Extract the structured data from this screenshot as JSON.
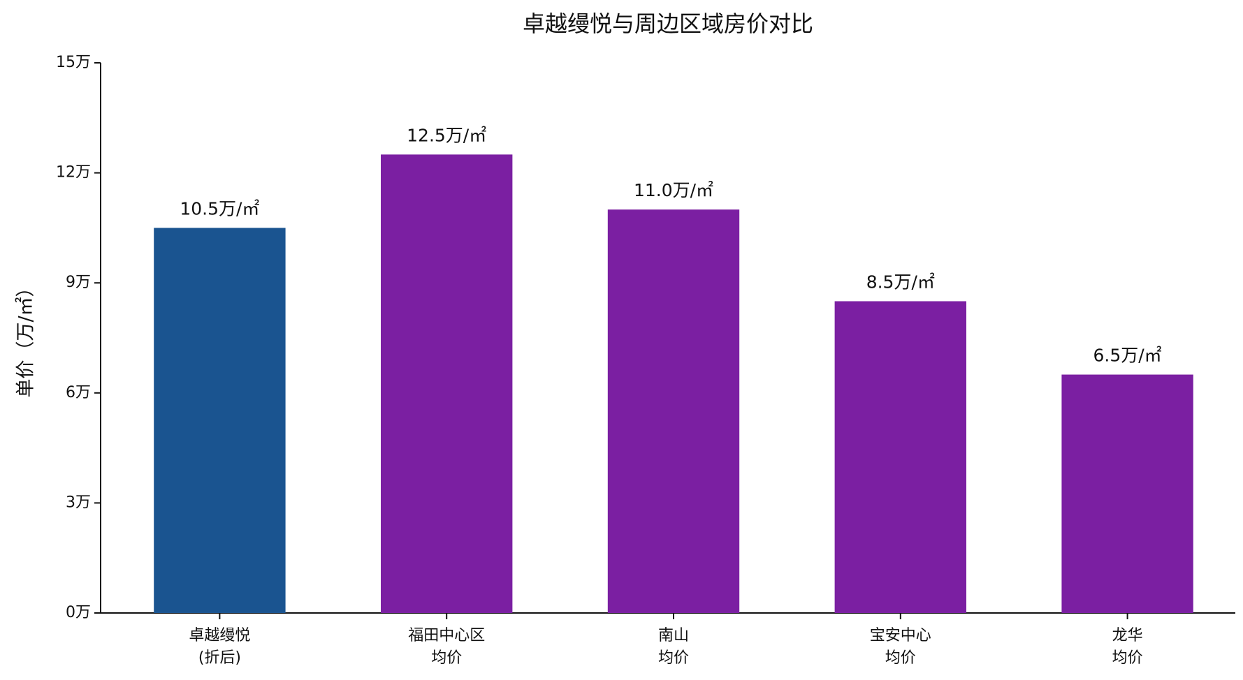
{
  "chart_data": {
    "type": "bar",
    "title": "卓越缦悦与周边区域房价对比",
    "ylabel": "单价（万/㎡）",
    "categories": [
      [
        "卓越缦悦",
        "(折后)"
      ],
      [
        "福田中心区",
        "均价"
      ],
      [
        "南山",
        "均价"
      ],
      [
        "宝安中心",
        "均价"
      ],
      [
        "龙华",
        "均价"
      ]
    ],
    "values": [
      10.5,
      12.5,
      11.0,
      8.5,
      6.5
    ],
    "value_labels": [
      "10.5万/㎡",
      "12.5万/㎡",
      "11.0万/㎡",
      "8.5万/㎡",
      "6.5万/㎡"
    ],
    "colors": [
      "#1a5490",
      "#7b1fa2",
      "#7b1fa2",
      "#7b1fa2",
      "#7b1fa2"
    ],
    "ylim": [
      0,
      15
    ],
    "yticks": [
      {
        "value": 0,
        "label": "0万"
      },
      {
        "value": 3,
        "label": "3万"
      },
      {
        "value": 6,
        "label": "6万"
      },
      {
        "value": 9,
        "label": "9万"
      },
      {
        "value": 12,
        "label": "12万"
      },
      {
        "value": 15,
        "label": "15万"
      }
    ]
  }
}
